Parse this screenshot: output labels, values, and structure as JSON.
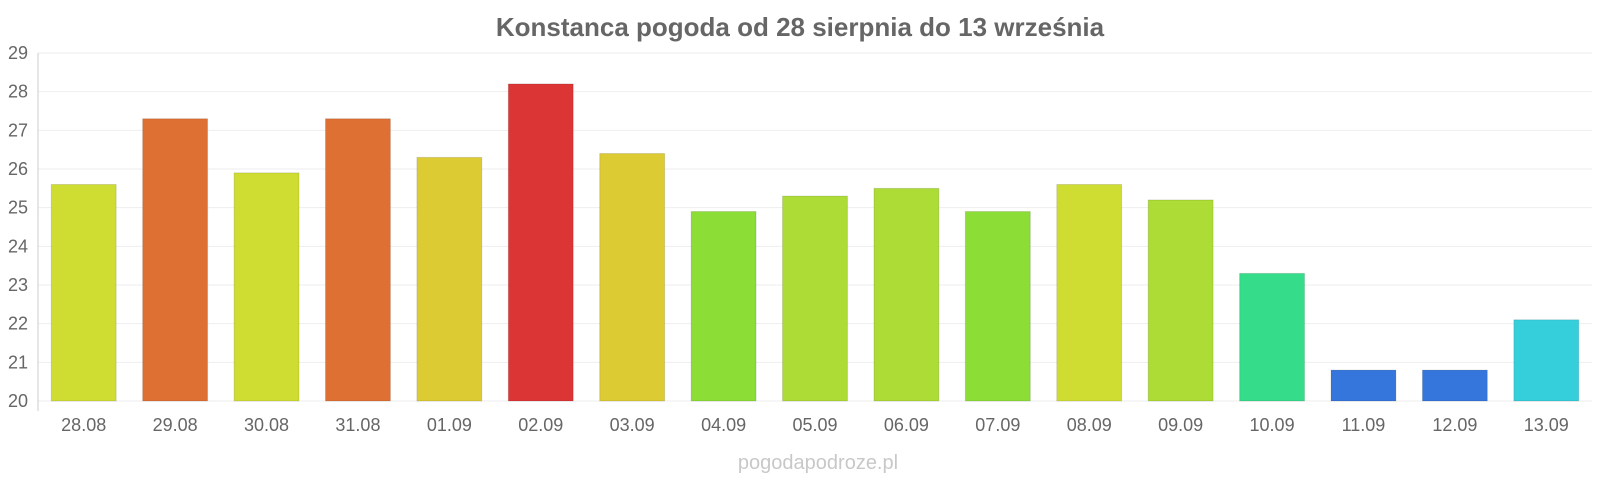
{
  "chart_data": {
    "type": "bar",
    "title": "Konstanca pogoda od 28 sierpnia do 13 września",
    "xlabel": "",
    "ylabel": "",
    "ylim": [
      20,
      29
    ],
    "yticks": [
      20,
      21,
      22,
      23,
      24,
      25,
      26,
      27,
      28,
      29
    ],
    "grid": true,
    "legend": "none",
    "categories": [
      "28.08",
      "29.08",
      "30.08",
      "31.08",
      "01.09",
      "02.09",
      "03.09",
      "04.09",
      "05.09",
      "06.09",
      "07.09",
      "08.09",
      "09.09",
      "10.09",
      "11.09",
      "12.09",
      "13.09"
    ],
    "values": [
      25.6,
      27.3,
      25.9,
      27.3,
      26.3,
      28.2,
      26.4,
      24.9,
      25.3,
      25.5,
      24.9,
      25.6,
      25.2,
      23.3,
      20.8,
      20.8,
      22.1
    ],
    "colors": [
      "#cfdd33",
      "#df7033",
      "#cfdd33",
      "#df7033",
      "#dccb33",
      "#dc3535",
      "#dccb33",
      "#8cdd35",
      "#acdc35",
      "#acdc35",
      "#8cdd35",
      "#cfdd33",
      "#acdc35",
      "#35dc8a",
      "#3576dc",
      "#3576dc",
      "#35cfdc"
    ]
  },
  "watermark": "pogodapodroze.pl"
}
